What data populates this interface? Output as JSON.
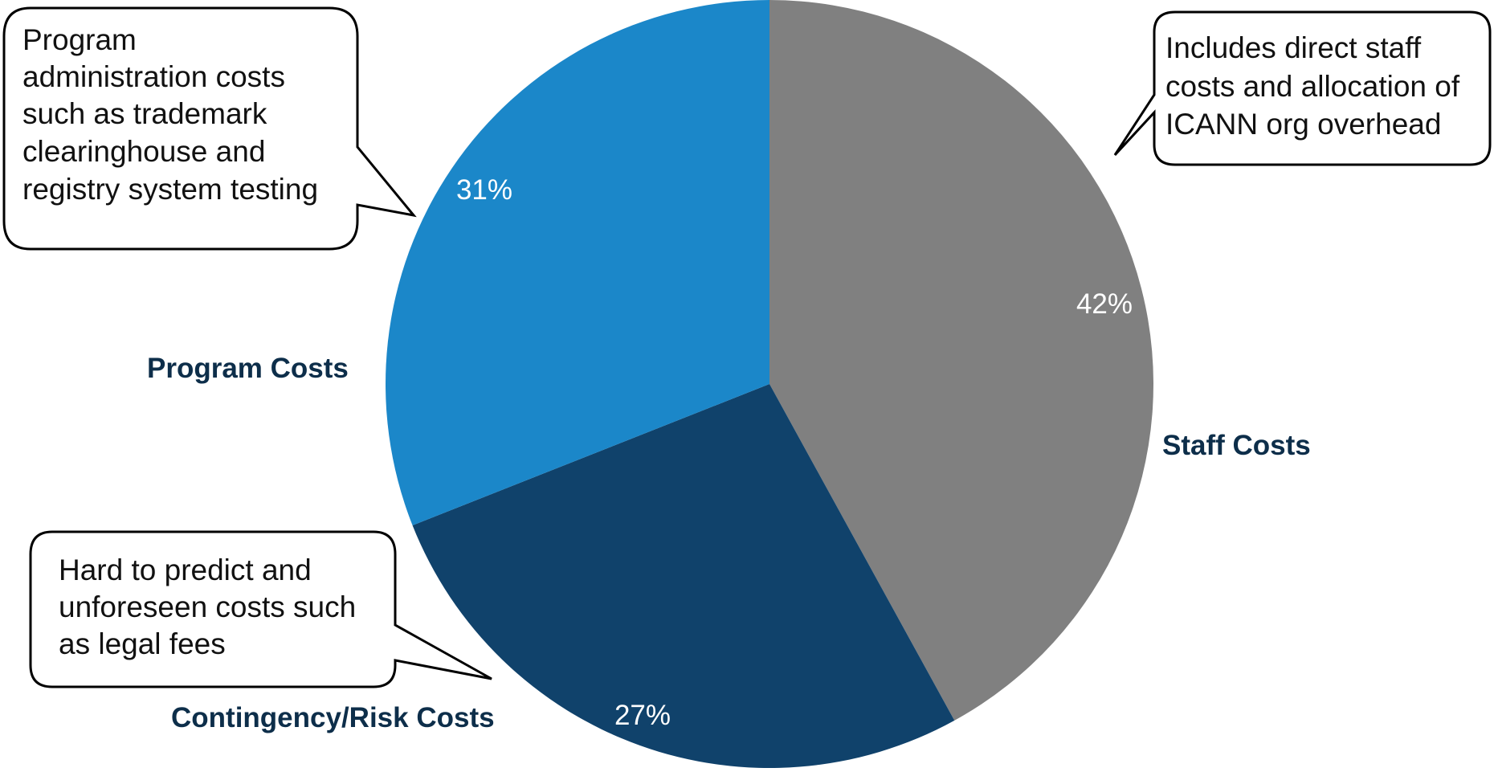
{
  "chart_data": {
    "type": "pie",
    "title": "",
    "start_angle_deg": 0,
    "direction": "clockwise",
    "slices": [
      {
        "label": "Staff Costs",
        "value": 42,
        "value_label": "42%",
        "color": "#808080"
      },
      {
        "label": "Contingency/Risk Costs",
        "value": 27,
        "value_label": "27%",
        "color": "#10426b"
      },
      {
        "label": "Program Costs",
        "value": 31,
        "value_label": "31%",
        "color": "#1b87c9"
      }
    ],
    "annotations": [
      {
        "for": "Staff Costs",
        "lines": [
          "Includes direct staff",
          "costs and allocation of",
          "ICANN org overhead"
        ]
      },
      {
        "for": "Program Costs",
        "lines": [
          "Program",
          "administration costs",
          "such as trademark",
          "clearinghouse and",
          "registry system testing"
        ]
      },
      {
        "for": "Contingency/Risk Costs",
        "lines": [
          "Hard to predict and",
          "unforeseen costs such",
          "as legal fees"
        ]
      }
    ]
  }
}
